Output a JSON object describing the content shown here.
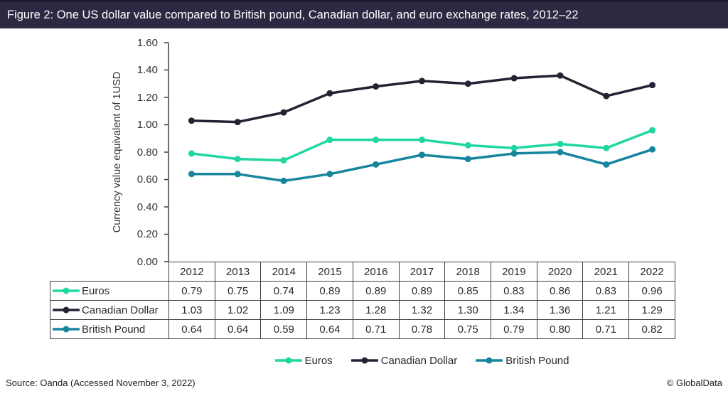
{
  "header": {
    "title": "Figure 2: One US dollar value compared to British pound, Canadian dollar, and euro exchange rates, 2012–22"
  },
  "chart_data": {
    "type": "line",
    "title": "One US dollar value compared to British pound, Canadian dollar, and euro exchange rates, 2012–22",
    "xlabel": "",
    "ylabel": "Currency value equivalent of 1USD",
    "ylim": [
      0.0,
      1.6
    ],
    "ytick_step": 0.2,
    "yticks": [
      "0.00",
      "0.20",
      "0.40",
      "0.60",
      "0.80",
      "1.00",
      "1.20",
      "1.40",
      "1.60"
    ],
    "grid": false,
    "legend_position": "bottom",
    "categories": [
      "2012",
      "2013",
      "2014",
      "2015",
      "2016",
      "2017",
      "2018",
      "2019",
      "2020",
      "2021",
      "2022"
    ],
    "series": [
      {
        "name": "Euros",
        "color": "#1fd7a1",
        "values": [
          0.79,
          0.75,
          0.74,
          0.89,
          0.89,
          0.89,
          0.85,
          0.83,
          0.86,
          0.83,
          0.96
        ]
      },
      {
        "name": "Canadian Dollar",
        "color": "#262235",
        "values": [
          1.03,
          1.02,
          1.09,
          1.23,
          1.28,
          1.32,
          1.3,
          1.34,
          1.36,
          1.21,
          1.29
        ]
      },
      {
        "name": "British Pound",
        "color": "#17859d",
        "values": [
          0.64,
          0.64,
          0.59,
          0.64,
          0.71,
          0.78,
          0.75,
          0.79,
          0.8,
          0.71,
          0.82
        ]
      }
    ]
  },
  "footer": {
    "source": "Source: Oanda (Accessed November 3, 2022)",
    "copyright": "© GlobalData"
  },
  "colors": {
    "title_bar": "#2e2943",
    "axis_and_borders": "#3f3f3f",
    "euros": "#1fd7a1",
    "canadian_dollar": "#262235",
    "british_pound": "#17859d"
  }
}
